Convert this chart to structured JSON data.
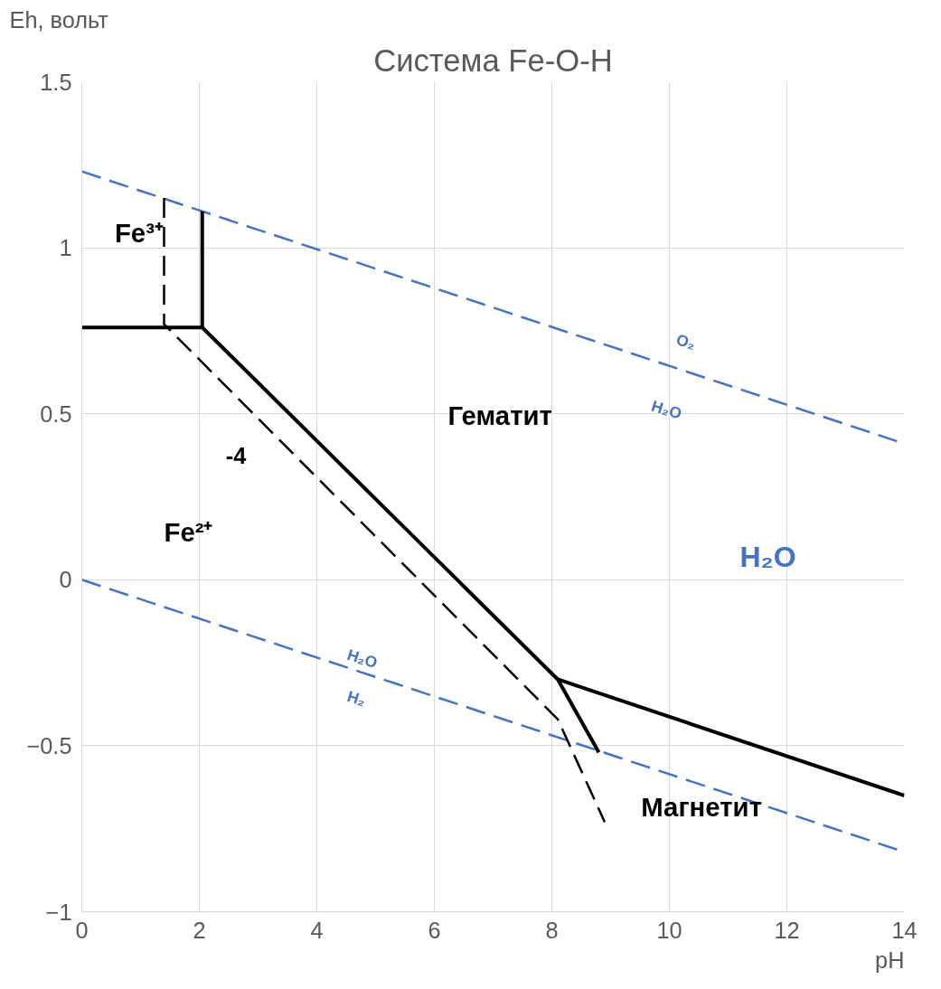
{
  "chart_data": {
    "type": "line",
    "title": "Система Fe-O-H",
    "xlabel": "pH",
    "ylabel": "Eh, вольт",
    "xlim": [
      0,
      14
    ],
    "ylim": [
      -1,
      1.5
    ],
    "xticks": [
      0,
      2,
      4,
      6,
      8,
      10,
      12,
      14
    ],
    "yticks": [
      -1,
      -0.5,
      0,
      0.5,
      1,
      1.5
    ],
    "grid": true,
    "marker": "none",
    "series": [
      {
        "color": "#4472c4",
        "line_style": "dashed",
        "x": [
          0,
          14
        ],
        "values": [
          1.23,
          0.41
        ]
      },
      {
        "color": "#4472c4",
        "line_style": "dashed",
        "x": [
          0,
          14
        ],
        "values": [
          0,
          -0.82
        ]
      },
      {
        "color": "#000000",
        "line_style": "solid",
        "x": [
          0,
          2.05,
          2.05
        ],
        "values": [
          0.76,
          0.76,
          1.11
        ]
      },
      {
        "color": "#000000",
        "line_style": "solid",
        "x": [
          2.05,
          8.1,
          8.8
        ],
        "values": [
          0.76,
          -0.3,
          -0.52
        ]
      },
      {
        "color": "#000000",
        "line_style": "solid",
        "x": [
          8.1,
          14
        ],
        "values": [
          -0.3,
          -0.65
        ]
      },
      {
        "color": "#000000",
        "line_style": "dashed",
        "x": [
          1.4,
          1.4,
          8.1,
          8.9
        ],
        "values": [
          1.15,
          0.77,
          -0.42,
          -0.73
        ]
      }
    ],
    "annotations": [
      "Fe³⁺",
      "Fe²⁺",
      "-4",
      "Гематит",
      "Магнетит",
      "H₂O",
      "O₂",
      "H₂O",
      "H₂O",
      "H₂"
    ]
  }
}
